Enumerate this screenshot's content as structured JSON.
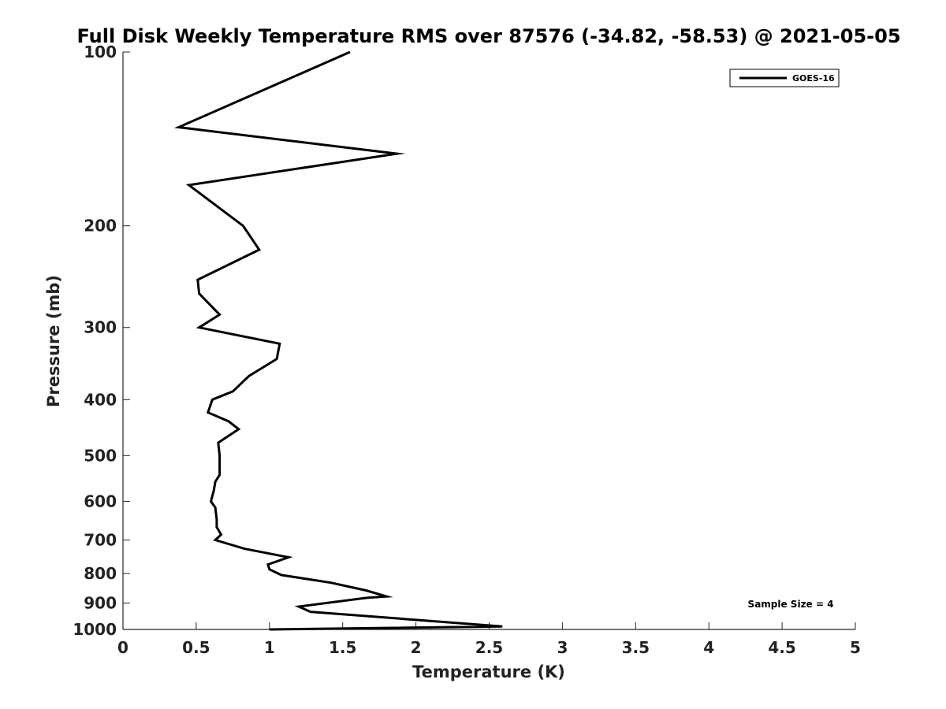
{
  "chart_data": {
    "type": "line",
    "title": "Full Disk Weekly Temperature RMS over 87576 (-34.82, -58.53) @ 2021-05-05",
    "xlabel": "Temperature (K)",
    "ylabel": "Pressure (mb)",
    "xlim": [
      0,
      5
    ],
    "ylim": [
      100,
      1000
    ],
    "y_scale": "log",
    "y_reversed": true,
    "xticks": [
      0,
      0.5,
      1,
      1.5,
      2,
      2.5,
      3,
      3.5,
      4,
      4.5,
      5
    ],
    "xtick_labels": [
      "0",
      "0.5",
      "1",
      "1.5",
      "2",
      "2.5",
      "3",
      "3.5",
      "4",
      "4.5",
      "5"
    ],
    "yticks": [
      100,
      200,
      300,
      400,
      500,
      600,
      700,
      800,
      900,
      1000
    ],
    "ytick_labels": [
      "100",
      "200",
      "300",
      "400",
      "500",
      "600",
      "700",
      "800",
      "900",
      "1000"
    ],
    "grid": false,
    "legend_position": "top-right",
    "line_color": "#000000",
    "series": [
      {
        "name": "GOES-16",
        "x": [
          1.55,
          0.38,
          1.87,
          0.45,
          0.82,
          0.93,
          0.51,
          0.52,
          0.66,
          0.52,
          1.07,
          1.05,
          0.86,
          0.75,
          0.61,
          0.58,
          0.72,
          0.79,
          0.65,
          0.66,
          0.66,
          0.63,
          0.62,
          0.6,
          0.63,
          0.64,
          0.64,
          0.67,
          0.63,
          0.83,
          1.13,
          0.99,
          1.0,
          1.08,
          1.42,
          1.66,
          1.8,
          1.67,
          1.2,
          1.28,
          2.59,
          1.0
        ],
        "y": [
          100,
          135,
          150,
          170,
          200,
          220,
          248,
          262,
          285,
          300,
          320,
          340,
          364,
          387,
          400,
          421,
          436,
          450,
          475,
          500,
          540,
          555,
          575,
          600,
          615,
          645,
          665,
          685,
          700,
          725,
          750,
          772,
          787,
          805,
          830,
          856,
          877,
          881,
          913,
          932,
          988,
          1000
        ]
      }
    ],
    "annotation": "Sample Size = 4"
  }
}
